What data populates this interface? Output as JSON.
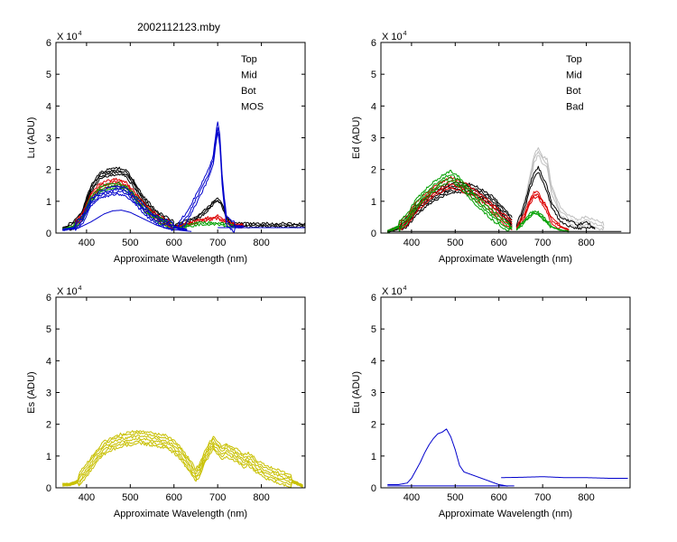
{
  "figure_title": "2002112123.mby",
  "colors": {
    "Top": "#000000",
    "Mid": "#dd0000",
    "Bot": "#00a000",
    "MOS": "#0000cc",
    "Bad": "#c0c0c0",
    "Es": "#c8c000",
    "Eu": "#0000cc"
  },
  "chart_data": [
    {
      "id": "lu",
      "type": "line",
      "title": "2002112123.mby",
      "xlabel": "Approximate Wavelength (nm)",
      "ylabel": "Lu (ADU)",
      "sci_base": "X 10",
      "sci_exp": "4",
      "xlim": [
        330,
        900
      ],
      "ylim": [
        0,
        6
      ],
      "xticks": [
        400,
        500,
        600,
        700,
        800
      ],
      "yticks": [
        0,
        1,
        2,
        3,
        4,
        5,
        6
      ],
      "legend": [
        "Top",
        "Mid",
        "Bot",
        "MOS"
      ],
      "series": [
        {
          "name": "Top",
          "segments": [
            {
              "x": [
                345,
                370,
                390,
                410,
                430,
                450,
                470,
                490,
                510,
                530,
                550,
                570,
                590,
                600
              ],
              "y": [
                0.15,
                0.25,
                0.6,
                1.4,
                1.8,
                1.9,
                1.95,
                1.9,
                1.5,
                1.05,
                0.75,
                0.5,
                0.35,
                0.25
              ],
              "replicates": 4,
              "spread": 0.1
            },
            {
              "x": [
                600,
                620,
                640,
                660,
                680,
                690,
                700,
                710,
                720,
                730,
                740,
                760,
                800,
                900
              ],
              "y": [
                0.2,
                0.3,
                0.4,
                0.55,
                0.8,
                0.95,
                1.05,
                0.9,
                0.5,
                0.3,
                0.25,
                0.25,
                0.25,
                0.25
              ],
              "replicates": 3,
              "spread": 0.05
            }
          ]
        },
        {
          "name": "Mid",
          "segments": [
            {
              "x": [
                345,
                370,
                390,
                410,
                430,
                450,
                470,
                490,
                510,
                530,
                550,
                570,
                590,
                600
              ],
              "y": [
                0.12,
                0.2,
                0.5,
                1.15,
                1.45,
                1.55,
                1.6,
                1.5,
                1.2,
                0.85,
                0.6,
                0.4,
                0.28,
                0.2
              ],
              "replicates": 4,
              "spread": 0.1
            },
            {
              "x": [
                600,
                620,
                640,
                660,
                680,
                700,
                720,
                740,
                760
              ],
              "y": [
                0.18,
                0.25,
                0.3,
                0.4,
                0.45,
                0.5,
                0.35,
                0.25,
                0.22
              ],
              "replicates": 3,
              "spread": 0.04
            }
          ]
        },
        {
          "name": "Bot",
          "segments": [
            {
              "x": [
                345,
                370,
                390,
                410,
                430,
                450,
                470,
                490,
                510,
                530,
                550,
                570,
                590,
                600
              ],
              "y": [
                0.12,
                0.2,
                0.45,
                1.05,
                1.35,
                1.45,
                1.5,
                1.42,
                1.12,
                0.8,
                0.55,
                0.38,
                0.26,
                0.2
              ],
              "replicates": 3,
              "spread": 0.08
            },
            {
              "x": [
                600,
                620,
                640,
                660,
                680,
                700,
                720,
                740
              ],
              "y": [
                0.15,
                0.2,
                0.25,
                0.3,
                0.3,
                0.3,
                0.25,
                0.2
              ],
              "replicates": 2,
              "spread": 0.03
            }
          ]
        },
        {
          "name": "MOS",
          "segments": [
            {
              "x": [
                345,
                370,
                390,
                410,
                430,
                450,
                470,
                490,
                510,
                530,
                550,
                570,
                590,
                610,
                630
              ],
              "y": [
                0.1,
                0.15,
                0.4,
                0.95,
                1.2,
                1.3,
                1.35,
                1.3,
                1.05,
                0.75,
                0.5,
                0.35,
                0.25,
                0.15,
                0.1
              ],
              "replicates": 4,
              "spread": 0.12
            },
            {
              "x": [
                350,
                380,
                410,
                440,
                460,
                480,
                500,
                530,
                560,
                590,
                620,
                640
              ],
              "y": [
                0.1,
                0.15,
                0.35,
                0.6,
                0.7,
                0.72,
                0.65,
                0.45,
                0.25,
                0.12,
                0.08,
                0.05
              ],
              "replicates": 1,
              "spread": 0
            },
            {
              "x": [
                610,
                630,
                650,
                670,
                680,
                690,
                695,
                700,
                705,
                710,
                715,
                720,
                730,
                740,
                760
              ],
              "y": [
                0.2,
                0.5,
                1.05,
                1.6,
                1.9,
                2.3,
                2.9,
                3.35,
                2.9,
                1.7,
                1.0,
                0.4,
                0.25,
                0.2,
                0.2
              ],
              "replicates": 3,
              "spread": 0.15
            },
            {
              "x": [
                700,
                750,
                800,
                850,
                900
              ],
              "y": [
                0.17,
                0.17,
                0.17,
                0.17,
                0.17
              ],
              "replicates": 1,
              "spread": 0
            }
          ]
        }
      ]
    },
    {
      "id": "ed",
      "type": "line",
      "title": "",
      "xlabel": "Approximate Wavelength (nm)",
      "ylabel": "Ed  (ADU)",
      "sci_base": "X 10",
      "sci_exp": "4",
      "xlim": [
        330,
        900
      ],
      "ylim": [
        0,
        6
      ],
      "xticks": [
        400,
        500,
        600,
        700,
        800
      ],
      "yticks": [
        0,
        1,
        2,
        3,
        4,
        5,
        6
      ],
      "legend": [
        "Top",
        "Mid",
        "Bot",
        "Bad"
      ],
      "series": [
        {
          "name": "Bad",
          "segments": [
            {
              "x": [
                640,
                650,
                660,
                670,
                680,
                690,
                700,
                710,
                720,
                740,
                760,
                780,
                800,
                820,
                840
              ],
              "y": [
                0.2,
                0.5,
                1.0,
                1.6,
                2.3,
                2.6,
                2.3,
                2.2,
                1.4,
                0.7,
                0.45,
                0.3,
                0.4,
                0.3,
                0.2
              ],
              "replicates": 3,
              "spread": 0.12
            }
          ]
        },
        {
          "name": "Top",
          "segments": [
            {
              "x": [
                345,
                370,
                390,
                410,
                430,
                450,
                470,
                490,
                510,
                530,
                550,
                570,
                590,
                610,
                630
              ],
              "y": [
                0.05,
                0.15,
                0.35,
                0.7,
                0.95,
                1.15,
                1.3,
                1.4,
                1.45,
                1.4,
                1.3,
                1.15,
                0.95,
                0.65,
                0.35
              ],
              "replicates": 5,
              "spread": 0.15
            },
            {
              "x": [
                640,
                650,
                660,
                670,
                680,
                690,
                700,
                710,
                720,
                740,
                760,
                780,
                800,
                820
              ],
              "y": [
                0.2,
                0.5,
                0.9,
                1.4,
                1.8,
                2.0,
                1.7,
                1.4,
                0.9,
                0.45,
                0.3,
                0.2,
                0.25,
                0.15
              ],
              "replicates": 2,
              "spread": 0.08
            }
          ]
        },
        {
          "name": "Mid",
          "segments": [
            {
              "x": [
                345,
                370,
                390,
                410,
                430,
                450,
                470,
                490,
                510,
                530,
                550,
                570,
                590,
                610,
                630
              ],
              "y": [
                0.05,
                0.2,
                0.4,
                0.8,
                1.05,
                1.3,
                1.45,
                1.6,
                1.5,
                1.35,
                1.15,
                0.95,
                0.7,
                0.45,
                0.25
              ],
              "replicates": 4,
              "spread": 0.15
            },
            {
              "x": [
                640,
                650,
                660,
                670,
                680,
                690,
                700,
                710,
                720,
                740,
                760
              ],
              "y": [
                0.15,
                0.35,
                0.6,
                0.95,
                1.2,
                1.2,
                0.95,
                0.75,
                0.4,
                0.2,
                0.1
              ],
              "replicates": 3,
              "spread": 0.08
            }
          ]
        },
        {
          "name": "Bot",
          "segments": [
            {
              "x": [
                345,
                370,
                390,
                410,
                430,
                450,
                470,
                490,
                500,
                510,
                530,
                550,
                570,
                590,
                610,
                630
              ],
              "y": [
                0.05,
                0.2,
                0.45,
                0.9,
                1.2,
                1.45,
                1.65,
                1.8,
                1.7,
                1.6,
                1.3,
                1.0,
                0.75,
                0.5,
                0.3,
                0.15
              ],
              "replicates": 4,
              "spread": 0.15
            },
            {
              "x": [
                640,
                650,
                660,
                670,
                680,
                690,
                700,
                710,
                720,
                740,
                760
              ],
              "y": [
                0.1,
                0.25,
                0.4,
                0.55,
                0.65,
                0.6,
                0.5,
                0.35,
                0.2,
                0.1,
                0.05
              ],
              "replicates": 3,
              "spread": 0.05
            }
          ]
        },
        {
          "name": "Top",
          "segments": [
            {
              "x": [
                345,
                400,
                500,
                600,
                700,
                800,
                880
              ],
              "y": [
                0.05,
                0.05,
                0.05,
                0.05,
                0.05,
                0.05,
                0.05
              ],
              "replicates": 1,
              "spread": 0
            }
          ]
        }
      ]
    },
    {
      "id": "es",
      "type": "line",
      "title": "",
      "xlabel": "Approximate Wavelength (nm)",
      "ylabel": "Es  (ADU)",
      "sci_base": "X 10",
      "sci_exp": "4",
      "xlim": [
        330,
        900
      ],
      "ylim": [
        0,
        6
      ],
      "xticks": [
        400,
        500,
        600,
        700,
        800
      ],
      "yticks": [
        0,
        1,
        2,
        3,
        4,
        5,
        6
      ],
      "legend": [],
      "series": [
        {
          "name": "Es",
          "segments": [
            {
              "x": [
                345,
                360,
                380,
                400,
                420,
                440,
                460,
                480,
                500,
                520,
                540,
                560,
                580,
                600,
                620,
                640,
                650
              ],
              "y": [
                0.1,
                0.1,
                0.2,
                0.55,
                0.95,
                1.25,
                1.4,
                1.5,
                1.55,
                1.6,
                1.55,
                1.5,
                1.45,
                1.3,
                1.0,
                0.6,
                0.4
              ],
              "replicates": 6,
              "spread": 0.2
            },
            {
              "x": [
                650,
                660,
                670,
                680,
                690,
                700,
                710,
                720,
                730,
                740,
                750,
                760,
                770,
                780,
                790,
                800,
                810,
                820,
                840,
                860,
                880,
                895
              ],
              "y": [
                0.4,
                0.6,
                0.95,
                1.2,
                1.4,
                1.25,
                1.1,
                1.2,
                1.1,
                1.05,
                0.95,
                0.85,
                0.9,
                0.8,
                0.65,
                0.6,
                0.5,
                0.45,
                0.35,
                0.25,
                0.15,
                0.05
              ],
              "replicates": 6,
              "spread": 0.2
            }
          ]
        }
      ]
    },
    {
      "id": "eu",
      "type": "line",
      "title": "",
      "xlabel": "Approximate Wavelength (nm)",
      "ylabel": "Eu  (ADU)",
      "sci_base": "X 10",
      "sci_exp": "4",
      "xlim": [
        330,
        900
      ],
      "ylim": [
        0,
        6
      ],
      "xticks": [
        400,
        500,
        600,
        700,
        800
      ],
      "yticks": [
        0,
        1,
        2,
        3,
        4,
        5,
        6
      ],
      "legend": [],
      "series": [
        {
          "name": "Eu",
          "segments": [
            {
              "x": [
                345,
                370,
                390,
                400,
                410,
                420,
                430,
                440,
                450,
                460,
                470,
                480,
                490,
                500,
                510,
                520,
                540,
                560,
                580,
                600,
                610,
                620
              ],
              "y": [
                0.1,
                0.1,
                0.15,
                0.3,
                0.55,
                0.8,
                1.1,
                1.35,
                1.55,
                1.7,
                1.75,
                1.85,
                1.6,
                1.2,
                0.7,
                0.5,
                0.4,
                0.3,
                0.2,
                0.1,
                0.08,
                0.05
              ],
              "replicates": 1,
              "spread": 0
            },
            {
              "x": [
                345,
                400,
                500,
                600,
                635
              ],
              "y": [
                0.06,
                0.06,
                0.06,
                0.06,
                0.06
              ],
              "replicates": 1,
              "spread": 0
            },
            {
              "x": [
                605,
                650,
                700,
                750,
                800,
                850,
                895
              ],
              "y": [
                0.32,
                0.33,
                0.35,
                0.32,
                0.32,
                0.3,
                0.3
              ],
              "replicates": 1,
              "spread": 0
            }
          ]
        }
      ]
    }
  ]
}
